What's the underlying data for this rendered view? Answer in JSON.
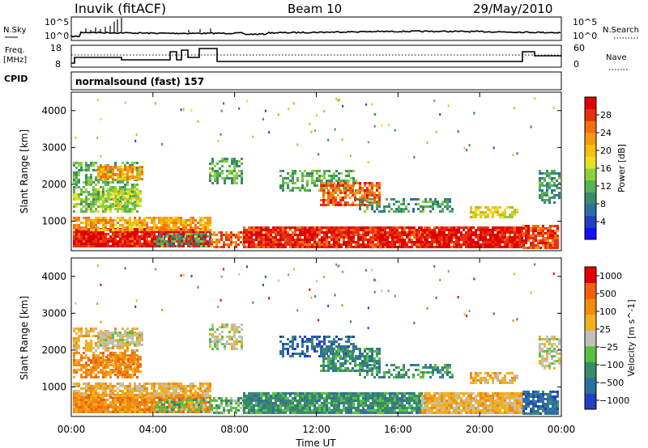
{
  "header": {
    "station": "Inuvik (fitACF)",
    "beam": "Beam 10",
    "date": "29/May/2010"
  },
  "noise_panel": {
    "left_label": "N.Sky",
    "right_label": "N.Search",
    "left_ticks": [
      "10^5",
      "10^0"
    ],
    "right_ticks": [
      "10^5",
      "10^0"
    ]
  },
  "freq_panel": {
    "left_label_1": "Freq.",
    "left_label_2": "[MHz]",
    "right_label": "Nave",
    "left_ticks": [
      "18",
      "8"
    ],
    "right_ticks": [
      "60",
      "0"
    ]
  },
  "cpid": {
    "label": "CPID",
    "value": "normalsound (fast) 157"
  },
  "chart_data": [
    {
      "type": "heatmap",
      "title": "",
      "xlabel": "",
      "ylabel": "Slant Range [km]",
      "x_ticks": [
        "00:00",
        "04:00",
        "08:00",
        "12:00",
        "16:00",
        "20:00",
        "00:00"
      ],
      "y_ticks": [
        "1000",
        "2000",
        "3000",
        "4000"
      ],
      "ylim": [
        200,
        4500
      ],
      "colorbar": {
        "label": "Power [dB]",
        "ticks": [
          "4",
          "8",
          "12",
          "16",
          "20",
          "24",
          "28"
        ],
        "range": [
          0,
          32
        ],
        "colors": [
          "#1010ff",
          "#2040c0",
          "#2f6f9f",
          "#3a8a6a",
          "#58b058",
          "#8fd03a",
          "#e8e020",
          "#f5c010",
          "#f59a10",
          "#f07010",
          "#e83010",
          "#e00000"
        ]
      }
    },
    {
      "type": "heatmap",
      "title": "",
      "xlabel": "Time UT",
      "ylabel": "Slant Range [km]",
      "x_ticks": [
        "00:00",
        "04:00",
        "08:00",
        "12:00",
        "16:00",
        "20:00",
        "00:00"
      ],
      "y_ticks": [
        "1000",
        "2000",
        "3000",
        "4000"
      ],
      "ylim": [
        200,
        4500
      ],
      "colorbar": {
        "label": "Velocity [m s^-1]",
        "ticks": [
          "1000",
          "500",
          "100",
          "25",
          "−25",
          "−100",
          "−500",
          "−1000"
        ],
        "colors": [
          "#2040c0",
          "#2f6f9f",
          "#3a8a6a",
          "#58c040",
          "#c0c0b8",
          "#f0b020",
          "#f08a10",
          "#f06010",
          "#e00000"
        ]
      }
    }
  ]
}
